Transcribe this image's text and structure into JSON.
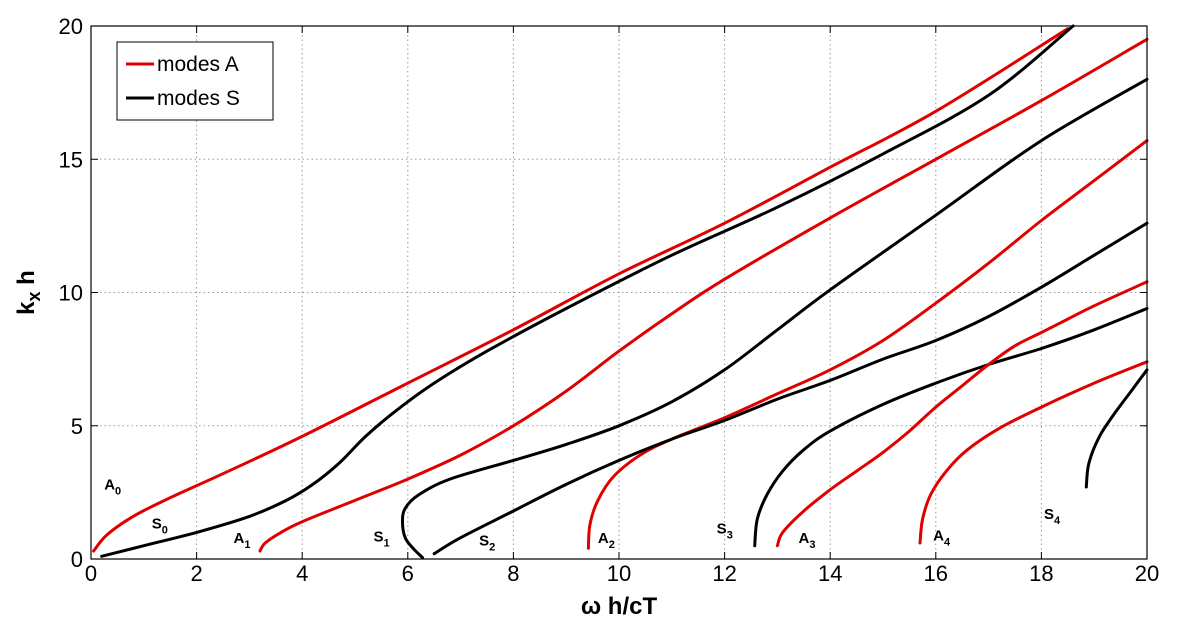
{
  "chart_data": {
    "type": "line",
    "title": "",
    "xlabel": "ω h/cT",
    "ylabel": "k",
    "ylabel_sub": "x",
    "ylabel_tail": " h",
    "xlim": [
      0,
      20
    ],
    "ylim": [
      0,
      20
    ],
    "xticks": [
      0,
      2,
      4,
      6,
      8,
      10,
      12,
      14,
      16,
      18,
      20
    ],
    "yticks": [
      0,
      5,
      10,
      15,
      20
    ],
    "grid": true,
    "legend_position": "top-left",
    "legend": [
      {
        "label": "modes A",
        "color": "#e00000"
      },
      {
        "label": "modes S",
        "color": "#000000"
      }
    ],
    "series": [
      {
        "name": "modes A",
        "label": "A",
        "sub": "0",
        "family": "A",
        "color": "#e00000",
        "x": [
          0.05,
          0.3,
          0.8,
          1.5,
          2.5,
          4,
          6,
          8,
          10,
          12,
          14,
          16,
          18.5
        ],
        "y": [
          0.3,
          0.9,
          1.6,
          2.3,
          3.2,
          4.6,
          6.6,
          8.6,
          10.7,
          12.6,
          14.7,
          16.8,
          19.9
        ]
      },
      {
        "name": "modes S",
        "label": "S",
        "sub": "0",
        "family": "S",
        "color": "#000000",
        "x": [
          0.2,
          1,
          2,
          3,
          3.7,
          4.2,
          4.7,
          5.2,
          5.8,
          6.5,
          7.5,
          9,
          11,
          13,
          15,
          17,
          18.6
        ],
        "y": [
          0.1,
          0.5,
          1,
          1.6,
          2.2,
          2.8,
          3.6,
          4.6,
          5.6,
          6.6,
          7.8,
          9.4,
          11.4,
          13.2,
          15.2,
          17.4,
          20
        ]
      },
      {
        "name": "modes A",
        "label": "A",
        "sub": "1",
        "family": "A",
        "color": "#e00000",
        "x": [
          3.2,
          3.3,
          3.6,
          4,
          5,
          6,
          7,
          8,
          9,
          10,
          11,
          12,
          14,
          16,
          18,
          20
        ],
        "y": [
          0.3,
          0.6,
          1,
          1.4,
          2.2,
          3,
          3.9,
          5,
          6.3,
          7.8,
          9.2,
          10.5,
          12.8,
          15,
          17.2,
          19.5
        ]
      },
      {
        "name": "modes S",
        "label": "S",
        "sub": "1",
        "family": "S",
        "color": "#000000",
        "x": [
          6.28,
          6.1,
          5.95,
          5.9,
          5.95,
          6.2,
          6.8,
          8,
          9,
          10,
          11,
          12,
          13,
          14,
          16,
          18,
          20
        ],
        "y": [
          0.05,
          0.4,
          0.8,
          1.4,
          1.9,
          2.4,
          3,
          3.7,
          4.3,
          5,
          5.9,
          7.1,
          8.6,
          10.1,
          12.9,
          15.7,
          18
        ]
      },
      {
        "name": "modes A",
        "label": "A",
        "sub": "2",
        "family": "A",
        "color": "#e00000",
        "x": [
          9.42,
          9.45,
          9.6,
          9.9,
          10.4,
          11,
          12,
          13,
          14,
          15,
          16,
          17,
          18,
          19,
          20
        ],
        "y": [
          0.4,
          1.3,
          2.2,
          3.1,
          3.9,
          4.5,
          5.3,
          6.2,
          7.1,
          8.2,
          9.6,
          11.1,
          12.7,
          14.2,
          15.7
        ]
      },
      {
        "name": "modes S",
        "label": "S",
        "sub": "2",
        "family": "S",
        "color": "#000000",
        "x": [
          6.5,
          7,
          8,
          9,
          10,
          11,
          12,
          13,
          14,
          15,
          16,
          17,
          18,
          19,
          20
        ],
        "y": [
          0.2,
          0.8,
          1.8,
          2.8,
          3.7,
          4.5,
          5.2,
          6,
          6.7,
          7.5,
          8.2,
          9.1,
          10.2,
          11.4,
          12.6
        ]
      },
      {
        "name": "modes S",
        "label": "S",
        "sub": "3",
        "family": "S",
        "color": "#000000",
        "x": [
          12.57,
          12.62,
          12.8,
          13.1,
          13.5,
          14,
          15,
          16,
          17,
          18,
          19,
          20
        ],
        "y": [
          0.5,
          1.5,
          2.4,
          3.3,
          4.1,
          4.8,
          5.8,
          6.6,
          7.3,
          7.9,
          8.6,
          9.4
        ]
      },
      {
        "name": "modes A",
        "label": "A",
        "sub": "3",
        "family": "A",
        "color": "#e00000",
        "x": [
          13.0,
          13.1,
          13.5,
          14,
          14.5,
          15,
          15.5,
          16,
          16.5,
          17,
          17.5,
          18,
          18.5,
          19,
          20
        ],
        "y": [
          0.5,
          1,
          1.8,
          2.6,
          3.3,
          4,
          4.8,
          5.7,
          6.5,
          7.3,
          8,
          8.5,
          9,
          9.5,
          10.4
        ]
      },
      {
        "name": "modes A",
        "label": "A",
        "sub": "4",
        "family": "A",
        "color": "#e00000",
        "x": [
          15.7,
          15.75,
          15.9,
          16.2,
          16.6,
          17.2,
          18,
          19,
          20
        ],
        "y": [
          0.6,
          1.5,
          2.4,
          3.3,
          4.1,
          4.9,
          5.7,
          6.6,
          7.4
        ]
      },
      {
        "name": "modes S",
        "label": "S",
        "sub": "4",
        "family": "S",
        "color": "#000000",
        "x": [
          18.85,
          18.9,
          19.1,
          19.4,
          19.7,
          20
        ],
        "y": [
          2.7,
          3.6,
          4.6,
          5.5,
          6.3,
          7.1
        ]
      }
    ],
    "curve_labels": [
      {
        "text": "A",
        "sub": "0",
        "x": 0.25,
        "y": 2.6
      },
      {
        "text": "S",
        "sub": "0",
        "x": 1.15,
        "y": 1.15
      },
      {
        "text": "A",
        "sub": "1",
        "x": 2.7,
        "y": 0.6
      },
      {
        "text": "S",
        "sub": "1",
        "x": 5.35,
        "y": 0.65
      },
      {
        "text": "S",
        "sub": "2",
        "x": 7.35,
        "y": 0.5
      },
      {
        "text": "A",
        "sub": "2",
        "x": 9.6,
        "y": 0.6
      },
      {
        "text": "S",
        "sub": "3",
        "x": 11.85,
        "y": 0.95
      },
      {
        "text": "A",
        "sub": "3",
        "x": 13.4,
        "y": 0.6
      },
      {
        "text": "A",
        "sub": "4",
        "x": 15.95,
        "y": 0.7
      },
      {
        "text": "S",
        "sub": "4",
        "x": 18.05,
        "y": 1.5
      }
    ]
  }
}
